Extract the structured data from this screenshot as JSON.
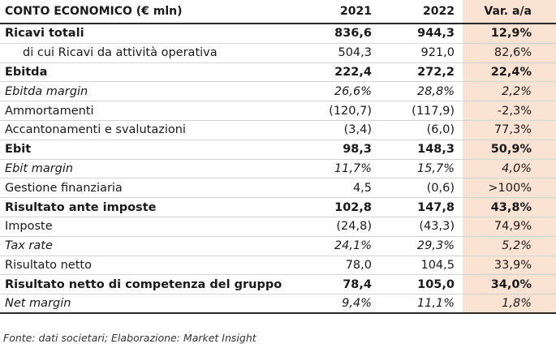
{
  "header": {
    "title": "CONTO ECONOMICO (€ mln)",
    "col_2021": "2021",
    "col_2022": "2022",
    "col_var": "Var. a/a"
  },
  "rows": [
    {
      "label": "Ricavi totali",
      "v2021": "836,6",
      "v2022": "944,3",
      "var": "12,9%"
    },
    {
      "label": "di cui Ricavi da attività operativa",
      "v2021": "504,3",
      "v2022": "921,0",
      "var": "82,6%"
    },
    {
      "label": "Ebitda",
      "v2021": "222,4",
      "v2022": "272,2",
      "var": "22,4%"
    },
    {
      "label": "Ebitda margin",
      "v2021": "26,6%",
      "v2022": "28,8%",
      "var": "2,2%"
    },
    {
      "label": "Ammortamenti",
      "v2021": "(120,7)",
      "v2022": "(117,9)",
      "var": "-2,3%"
    },
    {
      "label": "Accantonamenti e svalutazioni",
      "v2021": "(3,4)",
      "v2022": "(6,0)",
      "var": "77,3%"
    },
    {
      "label": "Ebit",
      "v2021": "98,3",
      "v2022": "148,3",
      "var": "50,9%"
    },
    {
      "label": "Ebit margin",
      "v2021": "11,7%",
      "v2022": "15,7%",
      "var": "4,0%"
    },
    {
      "label": "Gestione finanziaria",
      "v2021": "4,5",
      "v2022": "(0,6)",
      "var": ">100%"
    },
    {
      "label": "Risultato ante imposte",
      "v2021": "102,8",
      "v2022": "147,8",
      "var": "43,8%"
    },
    {
      "label": "Imposte",
      "v2021": "(24,8)",
      "v2022": "(43,3)",
      "var": "74,9%"
    },
    {
      "label": "Tax rate",
      "v2021": "24,1%",
      "v2022": "29,3%",
      "var": "5,2%"
    },
    {
      "label": "Risultato netto",
      "v2021": "78,0",
      "v2022": "104,5",
      "var": "33,9%"
    },
    {
      "label": "Risultato netto di competenza del gruppo",
      "v2021": "78,4",
      "v2022": "105,0",
      "var": "34,0%"
    },
    {
      "label": "Net margin",
      "v2021": "9,4%",
      "v2022": "11,1%",
      "var": "1,8%"
    }
  ],
  "source": "Fonte: dati societari; Elaborazione: Market Insight",
  "colors": {
    "var_column_bg": "#fbe3d3",
    "rule": "#2a2a2a"
  }
}
